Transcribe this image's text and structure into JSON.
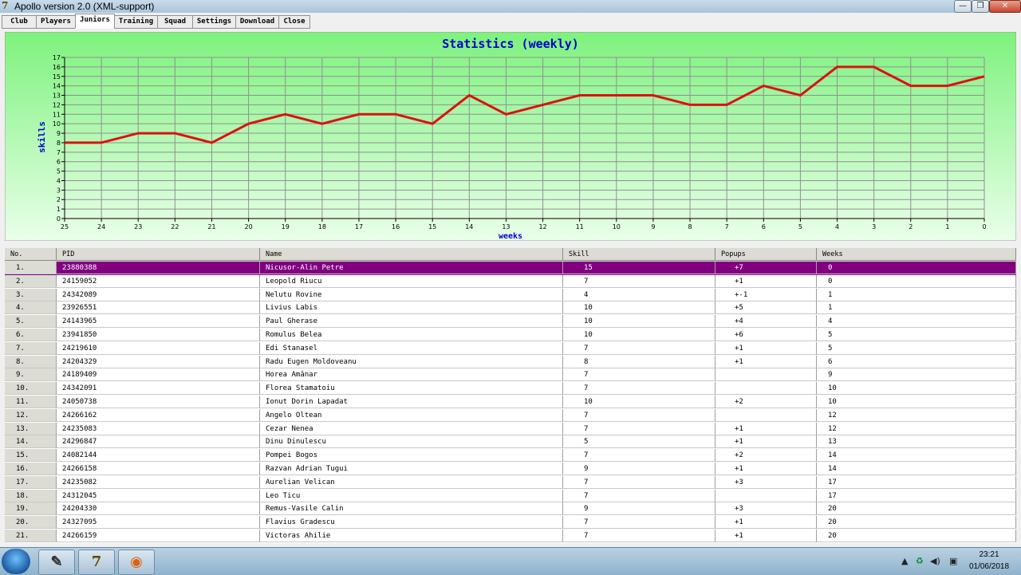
{
  "window": {
    "title": "Apollo version 2.0 (XML-support)",
    "min_glyph": "—",
    "max_glyph": "❐",
    "close_glyph": "✕"
  },
  "tabs": [
    {
      "label": "Club"
    },
    {
      "label": "Players"
    },
    {
      "label": "Juniors",
      "active": true
    },
    {
      "label": "Training"
    },
    {
      "label": "Squad"
    },
    {
      "label": "Settings"
    },
    {
      "label": "Download"
    },
    {
      "label": "Close"
    }
  ],
  "colors": {
    "accent": "#0000cc",
    "line": "#dd1111",
    "selected_row": "#800080",
    "chart_bg_top": "#7df27d",
    "chart_bg_bottom": "#eaffea"
  },
  "chart_data": {
    "type": "line",
    "title": "Statistics  (weekly)",
    "xlabel": "weeks",
    "ylabel": "skills",
    "x": [
      25,
      24,
      23,
      22,
      21,
      20,
      19,
      18,
      17,
      16,
      15,
      14,
      13,
      12,
      11,
      10,
      9,
      8,
      7,
      6,
      5,
      4,
      3,
      2,
      1,
      0
    ],
    "series": [
      {
        "values": [
          8,
          8,
          9,
          9,
          8,
          10,
          11,
          10,
          11,
          11,
          10,
          13,
          11,
          12,
          13,
          13,
          13,
          12,
          12,
          14,
          13,
          16,
          16,
          14,
          14,
          15
        ]
      }
    ],
    "ylim": [
      0,
      17
    ],
    "yticks": [
      0,
      1,
      2,
      3,
      4,
      5,
      6,
      7,
      8,
      9,
      10,
      11,
      12,
      13,
      14,
      15,
      16,
      17
    ],
    "grid": true,
    "legend": "none"
  },
  "table": {
    "columns": [
      "No.",
      "PID",
      "Name",
      "Skill",
      "Popups",
      "Weeks"
    ],
    "rows": [
      [
        "1.",
        "23880388",
        "Nicusor-Alin Petre",
        "15",
        "+7",
        "0"
      ],
      [
        "2.",
        "24159052",
        "Leopold Riucu",
        "7",
        "+1",
        "0"
      ],
      [
        "3.",
        "24342089",
        "Nelutu Rovine",
        "4",
        "+-1",
        "1"
      ],
      [
        "4.",
        "23926551",
        "Livius Labis",
        "10",
        "+5",
        "1"
      ],
      [
        "5.",
        "24143965",
        "Paul Gherase",
        "10",
        "+4",
        "4"
      ],
      [
        "6.",
        "23941850",
        "Romulus Belea",
        "10",
        "+6",
        "5"
      ],
      [
        "7.",
        "24219610",
        "Edi Stanasel",
        "7",
        "+1",
        "5"
      ],
      [
        "8.",
        "24204329",
        "Radu Eugen Moldoveanu",
        "8",
        "+1",
        "6"
      ],
      [
        "9.",
        "24189409",
        "Horea Amânar",
        "7",
        "",
        "9"
      ],
      [
        "10.",
        "24342091",
        "Florea Stamatoiu",
        "7",
        "",
        "10"
      ],
      [
        "11.",
        "24050738",
        "Ionut Dorin Lapadat",
        "10",
        "+2",
        "10"
      ],
      [
        "12.",
        "24266162",
        "Angelo Oltean",
        "7",
        "",
        "12"
      ],
      [
        "13.",
        "24235083",
        "Cezar Nenea",
        "7",
        "+1",
        "12"
      ],
      [
        "14.",
        "24296847",
        "Dinu Dinulescu",
        "5",
        "+1",
        "13"
      ],
      [
        "15.",
        "24082144",
        "Pompei Bogos",
        "7",
        "+2",
        "14"
      ],
      [
        "16.",
        "24266158",
        "Razvan Adrian Tugui",
        "9",
        "+1",
        "14"
      ],
      [
        "17.",
        "24235082",
        "Aurelian Velican",
        "7",
        "+3",
        "17"
      ],
      [
        "18.",
        "24312045",
        "Leo Ticu",
        "7",
        "",
        "17"
      ],
      [
        "19.",
        "24204330",
        "Remus-Vasile Calin",
        "9",
        "+3",
        "20"
      ],
      [
        "20.",
        "24327095",
        "Flavius Gradescu",
        "7",
        "+1",
        "20"
      ],
      [
        "21.",
        "24266159",
        "Victoras Ahilie",
        "7",
        "+1",
        "20"
      ]
    ],
    "selected_row": 0
  },
  "taskbar": {
    "time": "23:21",
    "date": "01/06/2018",
    "apps": [
      {
        "icon": "pencil-app-icon",
        "glyph": "✎"
      },
      {
        "icon": "apollo-app-icon",
        "glyph": "7"
      },
      {
        "icon": "firefox-icon",
        "glyph": "◉"
      }
    ],
    "tray_glyphs": [
      "▲",
      "♻",
      "◀)",
      "▣"
    ]
  }
}
